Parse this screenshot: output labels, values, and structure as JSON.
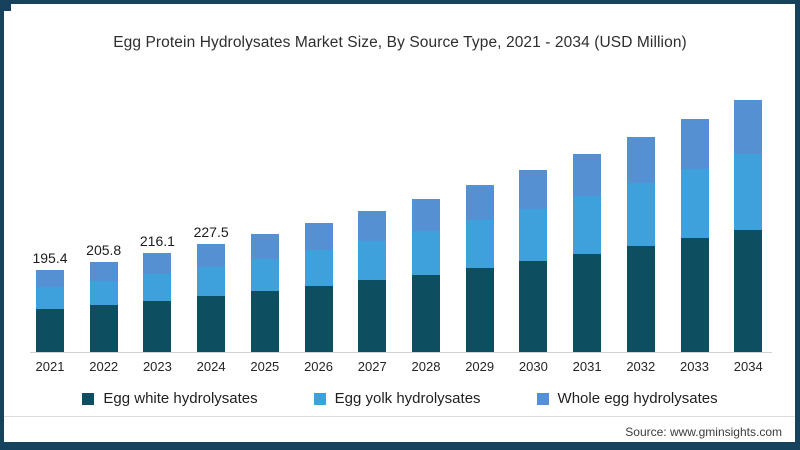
{
  "page": {
    "title": "Egg Protein Hydrolysates Market Size, By Source Type, 2021 - 2034 (USD Million)",
    "source": "Source: www.gminsights.com"
  },
  "colors": {
    "frame": "#17425e",
    "egg_white": "#0d4e60",
    "egg_yolk": "#3fa1dc",
    "whole_egg": "#5590d2",
    "axis_line": "#d2d2d2"
  },
  "legend": [
    {
      "label": "Egg white hydrolysates",
      "color": "#0d4e60"
    },
    {
      "label": "Egg yolk hydrolysates",
      "color": "#3fa1dc"
    },
    {
      "label": "Whole egg hydrolysates",
      "color": "#5590d2"
    }
  ],
  "chart_data": {
    "type": "bar",
    "stacked": true,
    "title": "Egg Protein Hydrolysates Market Size, By Source Type, 2021 - 2034 (USD Million)",
    "unit": "USD Million",
    "categories": [
      "2021",
      "2022",
      "2023",
      "2024",
      "2025",
      "2026",
      "2027",
      "2028",
      "2029",
      "2030",
      "2031",
      "2032",
      "2033",
      "2034"
    ],
    "series": [
      {
        "name": "Egg white hydrolysates",
        "color": "#0d4e60",
        "values": [
          102.6,
          107.4,
          112.2,
          117.4,
          123.1,
          129.0,
          135.9,
          142.6,
          150.3,
          158.4,
          167.3,
          176.6,
          186.3,
          196.3
        ]
      },
      {
        "name": "Egg yolk hydrolysates",
        "color": "#3fa1dc",
        "values": [
          51.8,
          55.1,
          58.4,
          62.1,
          66.2,
          70.5,
          75.4,
          80.3,
          86.0,
          92.0,
          98.7,
          105.8,
          113.3,
          121.2
        ]
      },
      {
        "name": "Whole egg hydrolysates",
        "color": "#5590d2",
        "values": [
          41.0,
          43.3,
          45.5,
          48.0,
          50.7,
          53.5,
          56.7,
          60.1,
          63.7,
          67.6,
          72.0,
          76.6,
          81.4,
          86.5
        ]
      }
    ],
    "totals": [
      195.4,
      205.8,
      216.1,
      227.5,
      240.0,
      253.0,
      268.0,
      283.0,
      300.0,
      318.0,
      338.0,
      359.0,
      381.0,
      404.0
    ],
    "visible_total_labels": [
      "195.4",
      "205.8",
      "216.1",
      "227.5"
    ],
    "labeled_categories": [
      "2021",
      "2022",
      "2023",
      "2024"
    ],
    "legend_position": "bottom",
    "grid": false,
    "y_axis_visible": false
  }
}
